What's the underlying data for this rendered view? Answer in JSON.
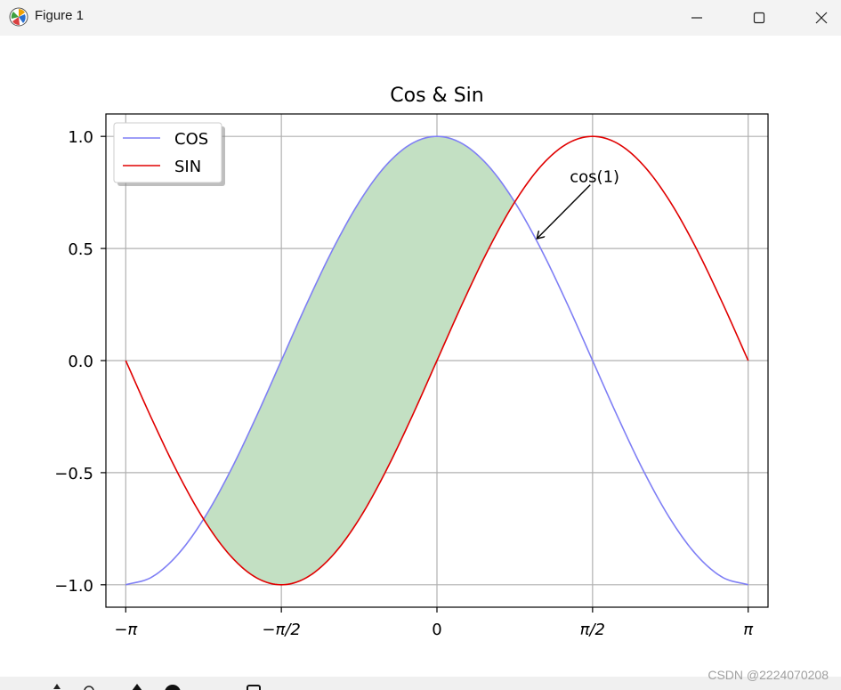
{
  "window": {
    "title": "Figure 1",
    "app_icon": "matplotlib-logo-icon",
    "controls": [
      "minimize-icon",
      "maximize-icon",
      "close-icon"
    ]
  },
  "toolbar": {
    "icons": [
      "pan-icon",
      "zoom-icon",
      "subplots-icon",
      "customize-icon",
      "save-icon"
    ]
  },
  "watermark": "CSDN @2224070208",
  "chart_data": {
    "type": "line",
    "title": "Cos & Sin",
    "xlabel": "",
    "ylabel": "",
    "xlim": [
      -3.342,
      3.342
    ],
    "ylim": [
      -1.1,
      1.1
    ],
    "x_ticks": [
      {
        "value": -3.14159,
        "label": "−π"
      },
      {
        "value": -1.5708,
        "label": "−π/2"
      },
      {
        "value": 0,
        "label": "0"
      },
      {
        "value": 1.5708,
        "label": "π/2"
      },
      {
        "value": 3.14159,
        "label": "π"
      }
    ],
    "y_ticks": [
      {
        "value": -1.0,
        "label": "−1.0"
      },
      {
        "value": -0.5,
        "label": "−0.5"
      },
      {
        "value": 0.0,
        "label": "0.0"
      },
      {
        "value": 0.5,
        "label": "0.5"
      },
      {
        "value": 1.0,
        "label": "1.0"
      }
    ],
    "grid": true,
    "legend": "upper-left",
    "x": [
      -3.142,
      -2.88,
      -2.618,
      -2.356,
      -2.094,
      -1.833,
      -1.571,
      -1.309,
      -1.047,
      -0.785,
      -0.524,
      -0.262,
      0.0,
      0.262,
      0.524,
      0.785,
      1.047,
      1.309,
      1.571,
      1.833,
      2.094,
      2.356,
      2.618,
      2.88,
      3.142
    ],
    "series": [
      {
        "name": "COS",
        "color": "#7f7ff5",
        "values": [
          -1.0,
          -0.966,
          -0.866,
          -0.707,
          -0.5,
          -0.259,
          0.0,
          0.259,
          0.5,
          0.707,
          0.866,
          0.966,
          1.0,
          0.966,
          0.866,
          0.707,
          0.5,
          0.259,
          0.0,
          -0.259,
          -0.5,
          -0.707,
          -0.866,
          -0.966,
          -1.0
        ]
      },
      {
        "name": "SIN",
        "color": "#e00000",
        "values": [
          0.0,
          -0.259,
          -0.5,
          -0.707,
          -0.866,
          -0.966,
          -1.0,
          -0.966,
          -0.866,
          -0.707,
          -0.5,
          -0.259,
          0.0,
          0.259,
          0.5,
          0.707,
          0.866,
          0.966,
          1.0,
          0.966,
          0.866,
          0.707,
          0.5,
          0.259,
          0.0
        ]
      }
    ],
    "fill_between": {
      "between": [
        "COS",
        "SIN"
      ],
      "where": "COS above SIN",
      "x_range": [
        -2.356,
        0.785
      ],
      "color": "#c3e0c3"
    },
    "annotation": {
      "text": "cos(1)",
      "point": [
        1.0,
        0.54
      ],
      "text_at": [
        1.35,
        0.76
      ]
    }
  }
}
